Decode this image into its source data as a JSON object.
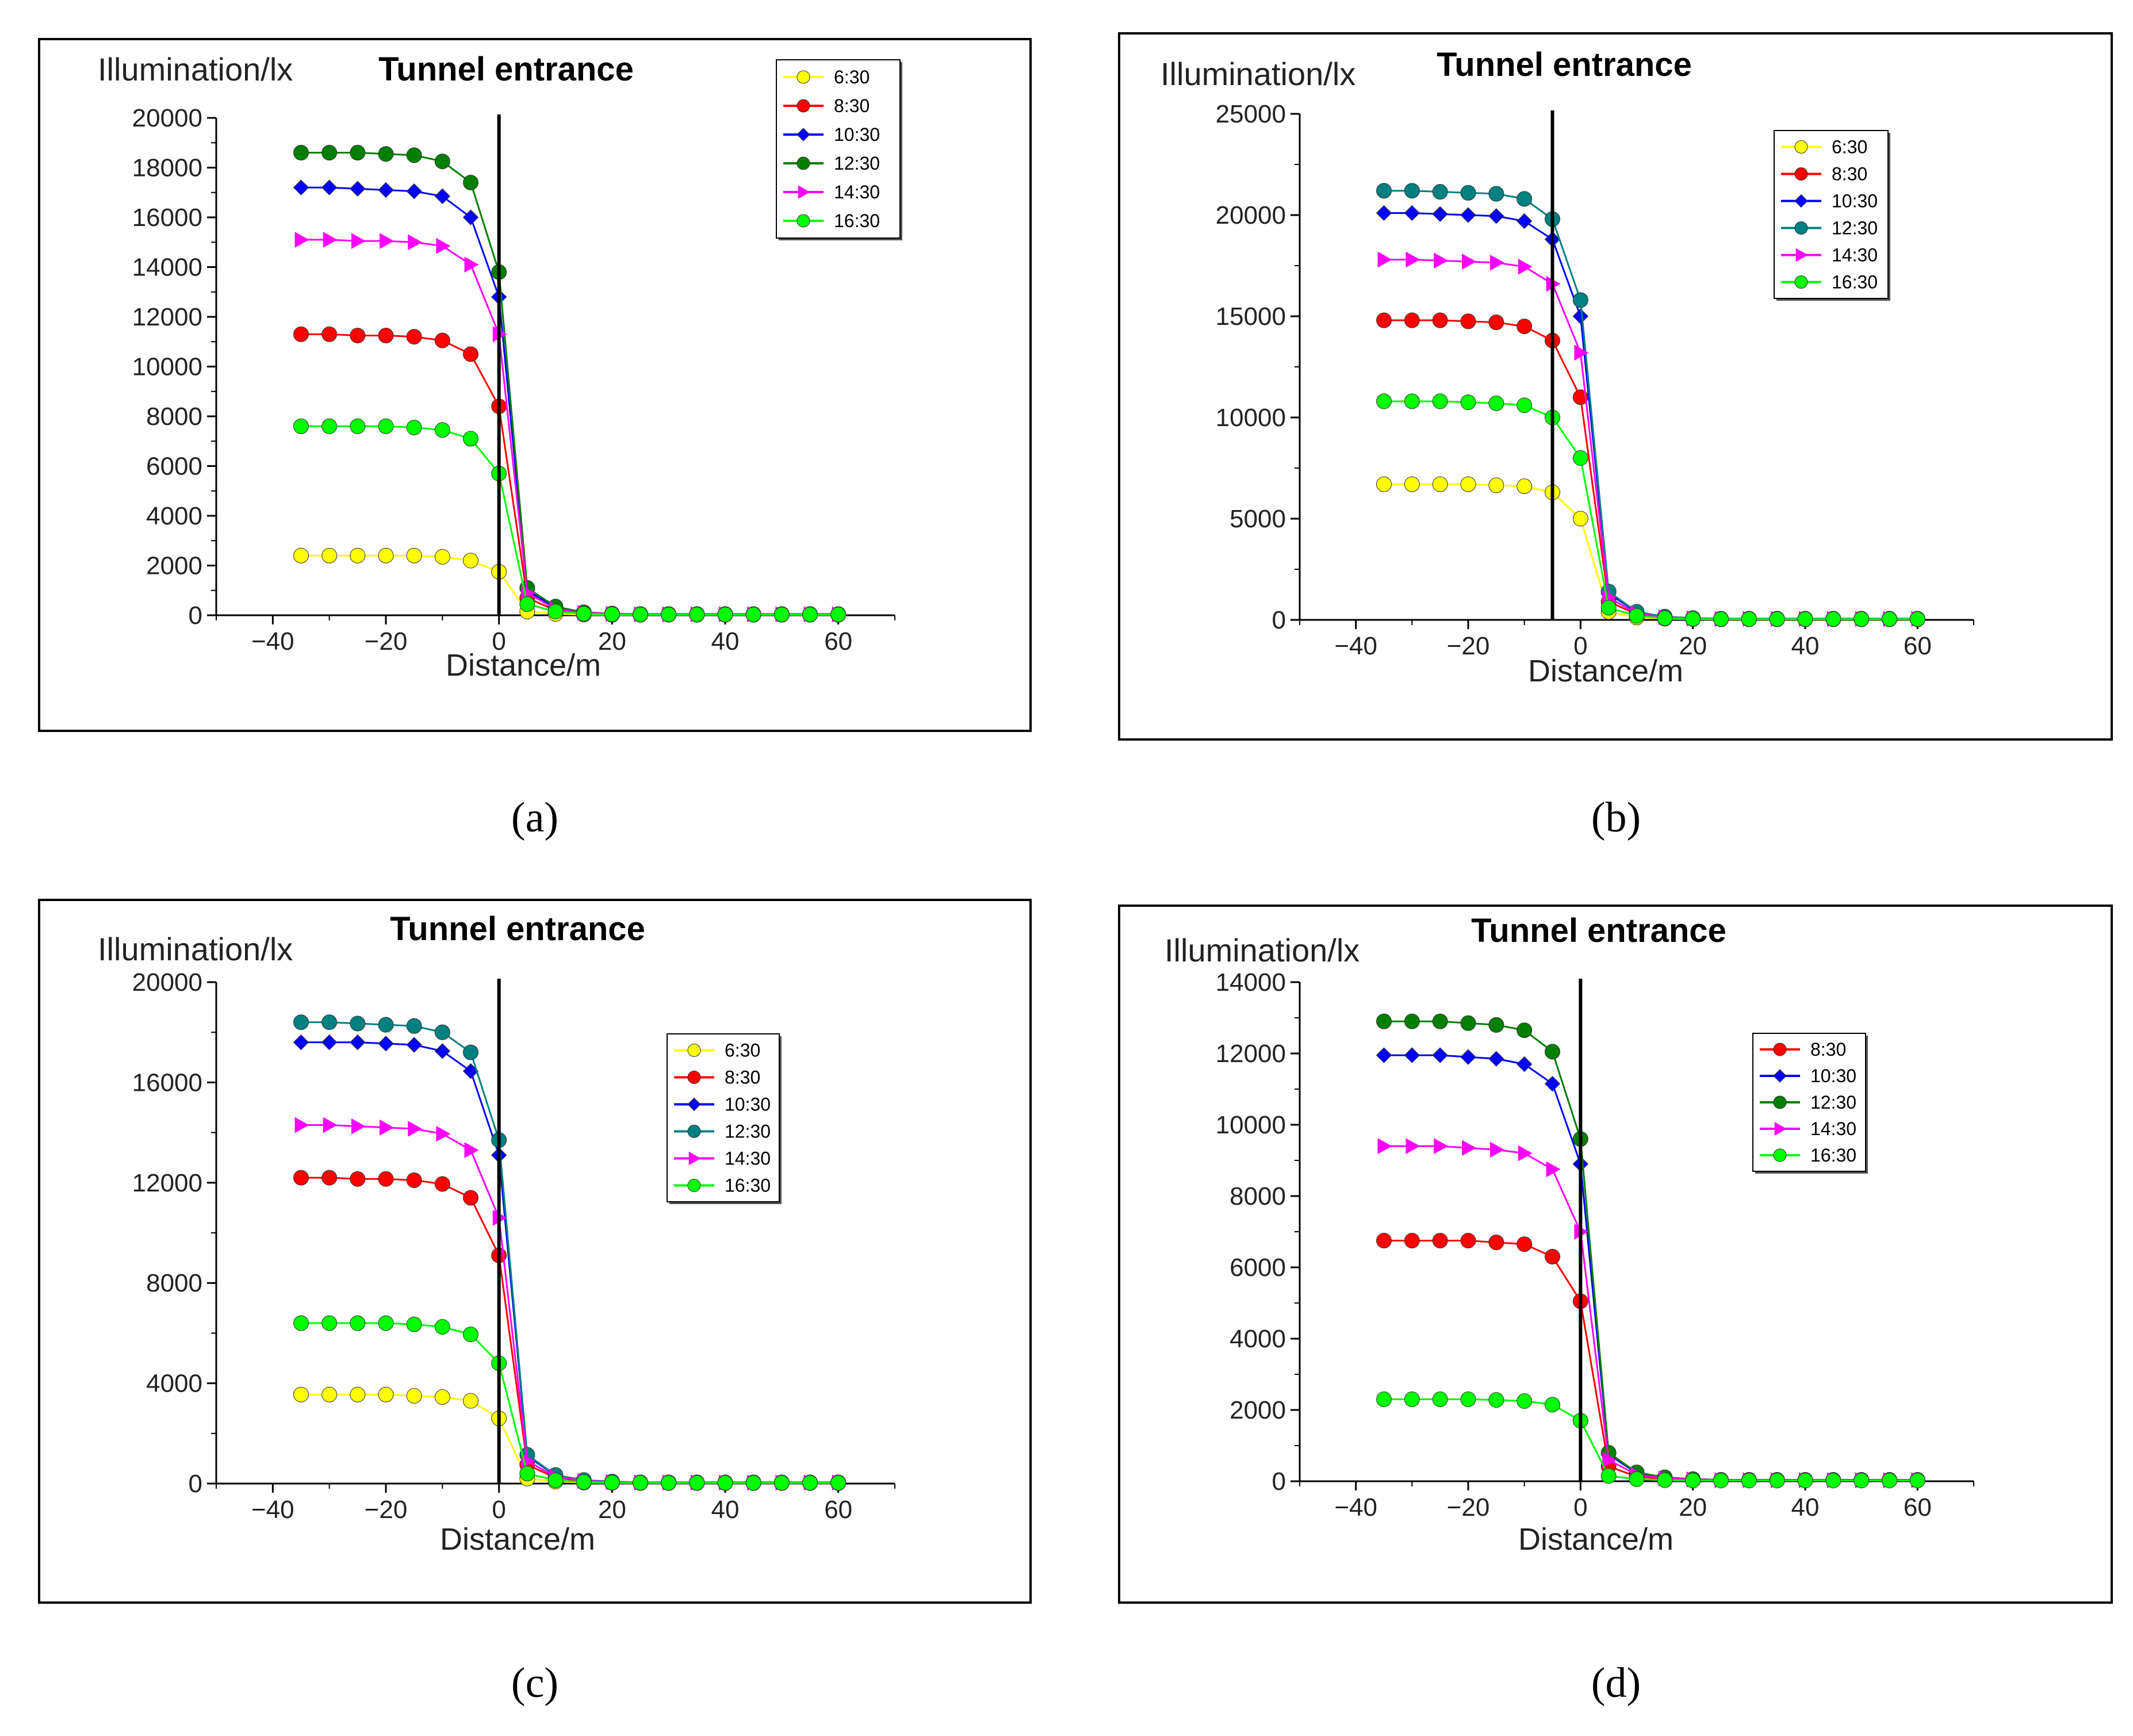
{
  "colors": {
    "6:30": "#ffff00",
    "8:30": "#ff0000",
    "10:30": "#0000ff",
    "12:30_green": "#007f00",
    "12:30_teal": "#008080",
    "14:30": "#ff00ff",
    "16:30": "#00ff00"
  },
  "chart_data": [
    {
      "id": "a",
      "caption": "(a)",
      "type": "line",
      "title": "Tunnel entrance",
      "ylabel": "Illumination/lx",
      "xlabel": "Distance/m",
      "xlim": [
        -50,
        70
      ],
      "ylim": [
        0,
        20000
      ],
      "xticks": [
        -40,
        -20,
        0,
        20,
        40,
        60
      ],
      "yticks": [
        0,
        2000,
        4000,
        6000,
        8000,
        10000,
        12000,
        14000,
        16000,
        18000,
        20000
      ],
      "entrance_x": 0,
      "x": [
        -35,
        -30,
        -25,
        -20,
        -15,
        -10,
        -5,
        0,
        5,
        10,
        15,
        20,
        25,
        30,
        35,
        40,
        45,
        50,
        55,
        60
      ],
      "series": [
        {
          "name": "6:30",
          "color": "#ffff00",
          "marker": "circle",
          "values": [
            2400,
            2400,
            2400,
            2400,
            2400,
            2350,
            2200,
            1750,
            150,
            60,
            30,
            20,
            20,
            20,
            20,
            20,
            20,
            20,
            20,
            20
          ]
        },
        {
          "name": "8:30",
          "color": "#ff0000",
          "marker": "circle",
          "values": [
            11300,
            11300,
            11250,
            11250,
            11200,
            11050,
            10500,
            8400,
            700,
            200,
            80,
            50,
            40,
            40,
            40,
            40,
            40,
            40,
            40,
            40
          ]
        },
        {
          "name": "10:30",
          "color": "#0000ff",
          "marker": "diamond",
          "values": [
            17200,
            17200,
            17150,
            17100,
            17050,
            16850,
            16000,
            12800,
            1000,
            300,
            100,
            60,
            50,
            50,
            50,
            50,
            50,
            50,
            50,
            50
          ]
        },
        {
          "name": "12:30",
          "color": "#007f00",
          "marker": "circle",
          "values": [
            18600,
            18600,
            18600,
            18550,
            18500,
            18250,
            17400,
            13800,
            1100,
            350,
            120,
            70,
            50,
            50,
            50,
            50,
            50,
            50,
            50,
            50
          ]
        },
        {
          "name": "14:30",
          "color": "#ff00ff",
          "marker": "triangle",
          "values": [
            15100,
            15100,
            15050,
            15050,
            15000,
            14850,
            14100,
            11300,
            900,
            250,
            100,
            60,
            40,
            40,
            40,
            40,
            40,
            40,
            40,
            40
          ]
        },
        {
          "name": "16:30",
          "color": "#00ff00",
          "marker": "circle",
          "values": [
            7600,
            7600,
            7600,
            7600,
            7550,
            7450,
            7100,
            5700,
            450,
            150,
            60,
            40,
            30,
            30,
            30,
            30,
            30,
            30,
            30,
            30
          ]
        }
      ]
    },
    {
      "id": "b",
      "caption": "(b)",
      "type": "line",
      "title": "Tunnel entrance",
      "ylabel": "Illumination/lx",
      "xlabel": "Distance/m",
      "xlim": [
        -50,
        70
      ],
      "ylim": [
        0,
        25000
      ],
      "xticks": [
        -40,
        -20,
        0,
        20,
        40,
        60
      ],
      "yticks": [
        0,
        5000,
        10000,
        15000,
        20000,
        25000
      ],
      "entrance_x": -5,
      "x": [
        -35,
        -30,
        -25,
        -20,
        -15,
        -10,
        -5,
        0,
        5,
        10,
        15,
        20,
        25,
        30,
        35,
        40,
        45,
        50,
        55,
        60
      ],
      "series": [
        {
          "name": "6:30",
          "color": "#ffff00",
          "marker": "circle",
          "values": [
            6700,
            6700,
            6700,
            6700,
            6650,
            6600,
            6300,
            5000,
            400,
            120,
            60,
            40,
            30,
            30,
            30,
            30,
            30,
            30,
            30,
            30
          ]
        },
        {
          "name": "8:30",
          "color": "#ff0000",
          "marker": "circle",
          "values": [
            14800,
            14800,
            14800,
            14750,
            14700,
            14500,
            13800,
            11000,
            900,
            280,
            120,
            70,
            50,
            50,
            50,
            50,
            50,
            50,
            50,
            50
          ]
        },
        {
          "name": "10:30",
          "color": "#0000ff",
          "marker": "diamond",
          "values": [
            20100,
            20100,
            20050,
            20000,
            19950,
            19700,
            18800,
            15000,
            1300,
            380,
            150,
            80,
            60,
            60,
            60,
            60,
            60,
            60,
            60,
            60
          ]
        },
        {
          "name": "12:30",
          "color": "#008080",
          "marker": "circle",
          "values": [
            21200,
            21200,
            21150,
            21100,
            21050,
            20800,
            19800,
            15800,
            1400,
            400,
            160,
            90,
            60,
            60,
            60,
            60,
            60,
            60,
            60,
            60
          ]
        },
        {
          "name": "14:30",
          "color": "#ff00ff",
          "marker": "triangle",
          "values": [
            17800,
            17800,
            17750,
            17700,
            17650,
            17450,
            16600,
            13200,
            1100,
            320,
            130,
            70,
            50,
            50,
            50,
            50,
            50,
            50,
            50,
            50
          ]
        },
        {
          "name": "16:30",
          "color": "#00ff00",
          "marker": "circle",
          "values": [
            10800,
            10800,
            10800,
            10750,
            10700,
            10600,
            10000,
            8000,
            600,
            200,
            80,
            50,
            40,
            40,
            40,
            40,
            40,
            40,
            40,
            40
          ]
        }
      ]
    },
    {
      "id": "c",
      "caption": "(c)",
      "type": "line",
      "title": "Tunnel entrance",
      "ylabel": "Illumination/lx",
      "xlabel": "Distance/m",
      "xlim": [
        -50,
        70
      ],
      "ylim": [
        0,
        20000
      ],
      "xticks": [
        -40,
        -20,
        0,
        20,
        40,
        60
      ],
      "yticks": [
        0,
        4000,
        8000,
        12000,
        16000,
        20000
      ],
      "entrance_x": 0,
      "x": [
        -35,
        -30,
        -25,
        -20,
        -15,
        -10,
        -5,
        0,
        5,
        10,
        15,
        20,
        25,
        30,
        35,
        40,
        45,
        50,
        55,
        60
      ],
      "series": [
        {
          "name": "6:30",
          "color": "#ffff00",
          "marker": "circle",
          "values": [
            3550,
            3550,
            3550,
            3550,
            3500,
            3450,
            3300,
            2600,
            200,
            80,
            40,
            30,
            20,
            20,
            20,
            20,
            20,
            20,
            20,
            20
          ]
        },
        {
          "name": "8:30",
          "color": "#ff0000",
          "marker": "circle",
          "values": [
            12200,
            12200,
            12150,
            12150,
            12100,
            11950,
            11400,
            9100,
            750,
            230,
            100,
            60,
            40,
            40,
            40,
            40,
            40,
            40,
            40,
            40
          ]
        },
        {
          "name": "10:30",
          "color": "#0000ff",
          "marker": "diamond",
          "values": [
            17600,
            17600,
            17600,
            17550,
            17500,
            17250,
            16450,
            13100,
            1100,
            320,
            130,
            70,
            50,
            50,
            50,
            50,
            50,
            50,
            50,
            50
          ]
        },
        {
          "name": "12:30",
          "color": "#008080",
          "marker": "circle",
          "values": [
            18400,
            18400,
            18350,
            18300,
            18250,
            18000,
            17200,
            13700,
            1150,
            340,
            140,
            80,
            50,
            50,
            50,
            50,
            50,
            50,
            50,
            50
          ]
        },
        {
          "name": "14:30",
          "color": "#ff00ff",
          "marker": "triangle",
          "values": [
            14300,
            14300,
            14250,
            14200,
            14150,
            13950,
            13300,
            10600,
            900,
            270,
            110,
            60,
            40,
            40,
            40,
            40,
            40,
            40,
            40,
            40
          ]
        },
        {
          "name": "16:30",
          "color": "#00ff00",
          "marker": "circle",
          "values": [
            6400,
            6400,
            6400,
            6400,
            6350,
            6250,
            5950,
            4800,
            400,
            130,
            60,
            40,
            30,
            30,
            30,
            30,
            30,
            30,
            30,
            30
          ]
        }
      ]
    },
    {
      "id": "d",
      "caption": "(d)",
      "type": "line",
      "title": "Tunnel entrance",
      "ylabel": "Illumination/lx",
      "xlabel": "Distance/m",
      "xlim": [
        -50,
        70
      ],
      "ylim": [
        0,
        14000
      ],
      "xticks": [
        -40,
        -20,
        0,
        20,
        40,
        60
      ],
      "yticks": [
        0,
        2000,
        4000,
        6000,
        8000,
        10000,
        12000,
        14000
      ],
      "entrance_x": 0,
      "x": [
        -35,
        -30,
        -25,
        -20,
        -15,
        -10,
        -5,
        0,
        5,
        10,
        15,
        20,
        25,
        30,
        35,
        40,
        45,
        50,
        55,
        60
      ],
      "series": [
        {
          "name": "8:30",
          "color": "#ff0000",
          "marker": "circle",
          "values": [
            6750,
            6750,
            6750,
            6750,
            6700,
            6650,
            6300,
            5050,
            420,
            130,
            60,
            40,
            30,
            30,
            30,
            30,
            30,
            30,
            30,
            30
          ]
        },
        {
          "name": "10:30",
          "color": "#0000ff",
          "marker": "diamond",
          "values": [
            11950,
            11950,
            11950,
            11900,
            11850,
            11700,
            11150,
            8900,
            750,
            230,
            100,
            60,
            40,
            40,
            40,
            40,
            40,
            40,
            40,
            40
          ]
        },
        {
          "name": "12:30",
          "color": "#007f00",
          "marker": "circle",
          "values": [
            12900,
            12900,
            12900,
            12850,
            12800,
            12650,
            12050,
            9600,
            800,
            250,
            110,
            60,
            40,
            40,
            40,
            40,
            40,
            40,
            40,
            40
          ]
        },
        {
          "name": "14:30",
          "color": "#ff00ff",
          "marker": "triangle",
          "values": [
            9400,
            9400,
            9400,
            9350,
            9300,
            9200,
            8750,
            7000,
            600,
            180,
            80,
            50,
            30,
            30,
            30,
            30,
            30,
            30,
            30,
            30
          ]
        },
        {
          "name": "16:30",
          "color": "#00ff00",
          "marker": "circle",
          "values": [
            2300,
            2300,
            2300,
            2300,
            2280,
            2250,
            2150,
            1700,
            150,
            60,
            30,
            20,
            20,
            20,
            20,
            20,
            20,
            20,
            20,
            20
          ]
        }
      ]
    }
  ]
}
